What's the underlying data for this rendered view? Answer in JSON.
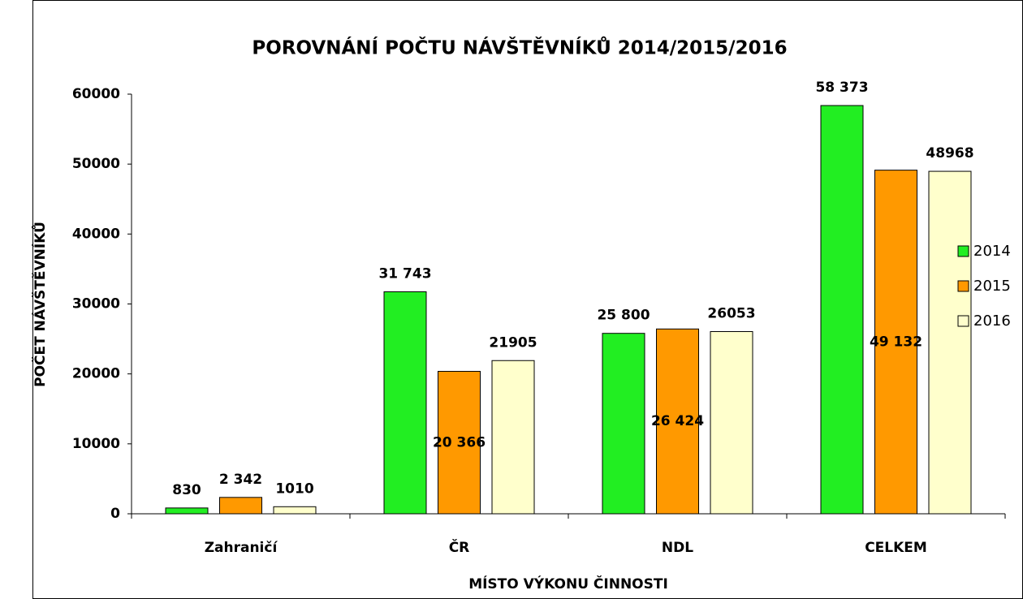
{
  "chart_data": {
    "type": "bar",
    "title": "POROVNÁNÍ POČTU NÁVŠTĚVNÍKŮ 2014/2015/2016",
    "xlabel": "MÍSTO VÝKONU ČINNOSTI",
    "ylabel": "POČET NÁVŠTĚVNÍKŮ",
    "categories": [
      "Zahraničí",
      "ČR",
      "NDL",
      "CELKEM"
    ],
    "series": [
      {
        "name": "2014",
        "color": "#22ee22",
        "values": [
          830,
          31743,
          25800,
          58373
        ],
        "value_labels": [
          "830",
          "31 743",
          "25 800",
          "58 373"
        ]
      },
      {
        "name": "2015",
        "color": "#ff9900",
        "values": [
          2342,
          20366,
          26424,
          49132
        ],
        "value_labels": [
          "2 342",
          "20 366",
          "26 424",
          "49 132"
        ]
      },
      {
        "name": "2016",
        "color": "#ffffcc",
        "values": [
          1010,
          21905,
          26053,
          48968
        ],
        "value_labels": [
          "1010",
          "21905",
          "26053",
          "48968"
        ]
      }
    ],
    "ylim": [
      0,
      60000
    ],
    "yticks": [
      0,
      10000,
      20000,
      30000,
      40000,
      50000,
      60000
    ],
    "grid": false,
    "legend": "right"
  }
}
